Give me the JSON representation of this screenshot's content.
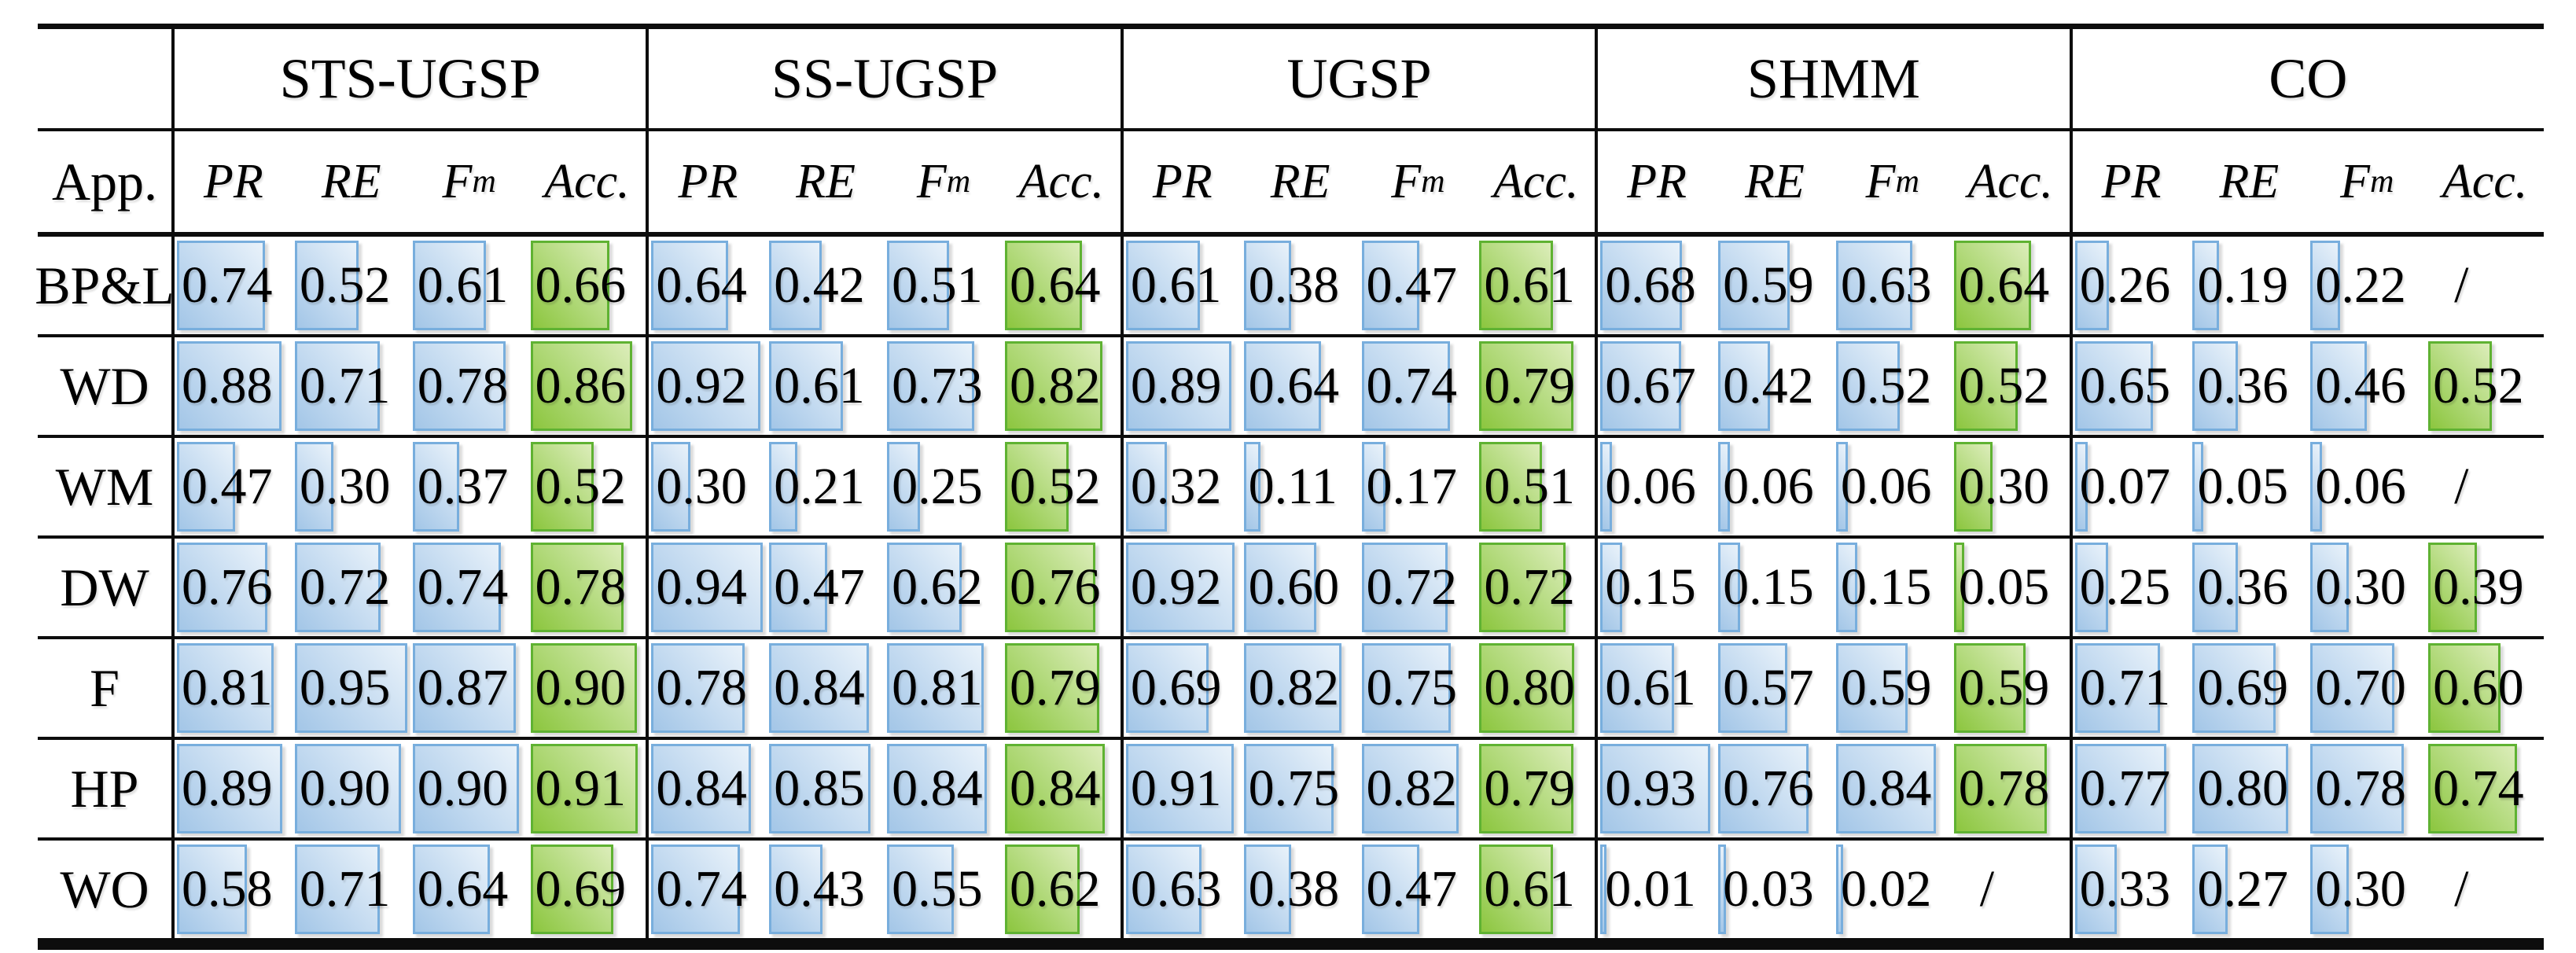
{
  "table": {
    "corner_label": "App.",
    "groups": [
      "STS-UGSP",
      "SS-UGSP",
      "UGSP",
      "SHMM",
      "CO"
    ],
    "metrics": [
      {
        "label": "PR",
        "sub": ""
      },
      {
        "label": "RE",
        "sub": ""
      },
      {
        "label": "F",
        "sub": "m"
      },
      {
        "label": "Acc.",
        "sub": ""
      }
    ],
    "missing_marker": "/",
    "colors": {
      "bar_blue_border": "#78aedd",
      "bar_blue_fill": "#c3daf0",
      "bar_green_border": "#5fb232",
      "bar_green_fill": "#b3da7d",
      "rule_color": "#0d0d0d"
    },
    "rows": [
      {
        "label": "BP&L",
        "values": [
          [
            0.74,
            0.52,
            0.61,
            0.66
          ],
          [
            0.64,
            0.42,
            0.51,
            0.64
          ],
          [
            0.61,
            0.38,
            0.47,
            0.61
          ],
          [
            0.68,
            0.59,
            0.63,
            0.64
          ],
          [
            0.26,
            0.19,
            0.22,
            null
          ]
        ]
      },
      {
        "label": "WD",
        "values": [
          [
            0.88,
            0.71,
            0.78,
            0.86
          ],
          [
            0.92,
            0.61,
            0.73,
            0.82
          ],
          [
            0.89,
            0.64,
            0.74,
            0.79
          ],
          [
            0.67,
            0.42,
            0.52,
            0.52
          ],
          [
            0.65,
            0.36,
            0.46,
            0.52
          ]
        ]
      },
      {
        "label": "WM",
        "values": [
          [
            0.47,
            0.3,
            0.37,
            0.52
          ],
          [
            0.3,
            0.21,
            0.25,
            0.52
          ],
          [
            0.32,
            0.11,
            0.17,
            0.51
          ],
          [
            0.06,
            0.06,
            0.06,
            0.3
          ],
          [
            0.07,
            0.05,
            0.06,
            null
          ]
        ]
      },
      {
        "label": "DW",
        "values": [
          [
            0.76,
            0.72,
            0.74,
            0.78
          ],
          [
            0.94,
            0.47,
            0.62,
            0.76
          ],
          [
            0.92,
            0.6,
            0.72,
            0.72
          ],
          [
            0.15,
            0.15,
            0.15,
            0.05
          ],
          [
            0.25,
            0.36,
            0.3,
            0.39
          ]
        ]
      },
      {
        "label": "F",
        "values": [
          [
            0.81,
            0.95,
            0.87,
            0.9
          ],
          [
            0.78,
            0.84,
            0.81,
            0.79
          ],
          [
            0.69,
            0.82,
            0.75,
            0.8
          ],
          [
            0.61,
            0.57,
            0.59,
            0.59
          ],
          [
            0.71,
            0.69,
            0.7,
            0.6
          ]
        ]
      },
      {
        "label": "HP",
        "values": [
          [
            0.89,
            0.9,
            0.9,
            0.91
          ],
          [
            0.84,
            0.85,
            0.84,
            0.84
          ],
          [
            0.91,
            0.75,
            0.82,
            0.79
          ],
          [
            0.93,
            0.76,
            0.84,
            0.78
          ],
          [
            0.77,
            0.8,
            0.78,
            0.74
          ]
        ]
      },
      {
        "label": "WO",
        "values": [
          [
            0.58,
            0.71,
            0.64,
            0.69
          ],
          [
            0.74,
            0.43,
            0.55,
            0.62
          ],
          [
            0.63,
            0.38,
            0.47,
            0.61
          ],
          [
            0.01,
            0.03,
            0.02,
            null
          ],
          [
            0.33,
            0.27,
            0.3,
            null
          ]
        ]
      }
    ]
  }
}
